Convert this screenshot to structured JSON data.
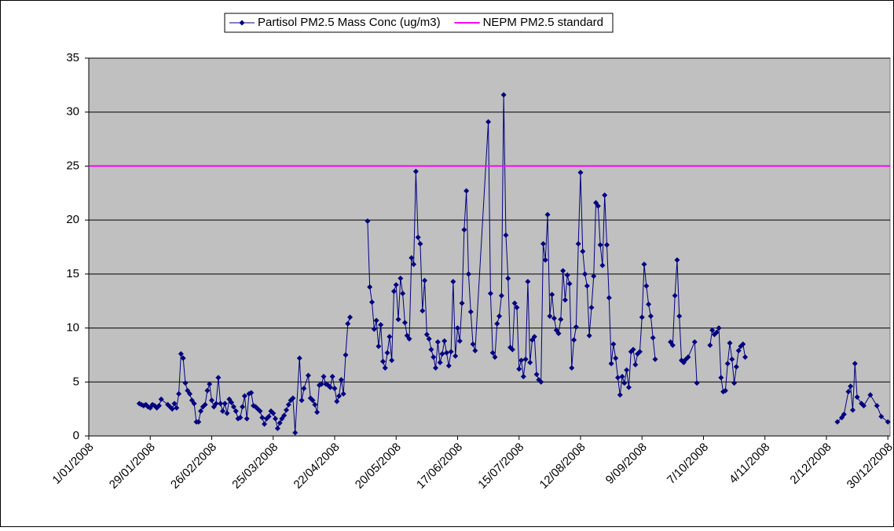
{
  "chart_data": {
    "type": "line",
    "xlim": [
      "2008-01-01",
      "2008-12-31"
    ],
    "xticks": [
      {
        "value": "2008-01-01",
        "label": "1/01/2008"
      },
      {
        "value": "2008-01-29",
        "label": "29/01/2008"
      },
      {
        "value": "2008-02-26",
        "label": "26/02/2008"
      },
      {
        "value": "2008-03-25",
        "label": "25/03/2008"
      },
      {
        "value": "2008-04-22",
        "label": "22/04/2008"
      },
      {
        "value": "2008-05-20",
        "label": "20/05/2008"
      },
      {
        "value": "2008-06-17",
        "label": "17/06/2008"
      },
      {
        "value": "2008-07-15",
        "label": "15/07/2008"
      },
      {
        "value": "2008-08-12",
        "label": "12/08/2008"
      },
      {
        "value": "2008-09-09",
        "label": "9/09/2008"
      },
      {
        "value": "2008-10-07",
        "label": "7/10/2008"
      },
      {
        "value": "2008-11-04",
        "label": "4/11/2008"
      },
      {
        "value": "2008-12-02",
        "label": "2/12/2008"
      },
      {
        "value": "2008-12-30",
        "label": "30/12/2008"
      }
    ],
    "ylim": [
      0,
      35
    ],
    "yticks": [
      0,
      5,
      10,
      15,
      20,
      25,
      30,
      35
    ],
    "grid": true,
    "series": [
      {
        "name": "Partisol PM2.5 Mass Conc (ug/m3)",
        "color": "#000080",
        "marker": "diamond",
        "x": [
          "2008-01-24",
          "2008-01-25",
          "2008-01-26",
          "2008-01-27",
          "2008-01-28",
          "2008-01-29",
          "2008-01-30",
          "2008-01-31",
          "2008-02-01",
          "2008-02-02",
          "2008-02-03",
          "2008-02-06",
          "2008-02-07",
          "2008-02-08",
          "2008-02-09",
          "2008-02-10",
          "2008-02-11",
          "2008-02-12",
          "2008-02-13",
          "2008-02-14",
          "2008-02-15",
          "2008-02-16",
          "2008-02-17",
          "2008-02-18",
          "2008-02-19",
          "2008-02-20",
          "2008-02-21",
          "2008-02-22",
          "2008-02-23",
          "2008-02-24",
          "2008-02-25",
          "2008-02-26",
          "2008-02-27",
          "2008-02-28",
          "2008-02-29",
          "2008-03-01",
          "2008-03-02",
          "2008-03-03",
          "2008-03-04",
          "2008-03-05",
          "2008-03-06",
          "2008-03-07",
          "2008-03-08",
          "2008-03-09",
          "2008-03-10",
          "2008-03-11",
          "2008-03-12",
          "2008-03-13",
          "2008-03-14",
          "2008-03-15",
          "2008-03-16",
          "2008-03-17",
          "2008-03-18",
          "2008-03-19",
          "2008-03-20",
          "2008-03-21",
          "2008-03-22",
          "2008-03-23",
          "2008-03-24",
          "2008-03-25",
          "2008-03-26",
          "2008-03-27",
          "2008-03-28",
          "2008-03-29",
          "2008-03-30",
          "2008-03-31",
          "2008-04-01",
          "2008-04-02",
          "2008-04-03",
          "2008-04-04",
          "2008-04-06",
          "2008-04-07",
          "2008-04-08",
          "2008-04-10",
          "2008-04-11",
          "2008-04-12",
          "2008-04-13",
          "2008-04-14",
          "2008-04-15",
          "2008-04-16",
          "2008-04-17",
          "2008-04-18",
          "2008-04-19",
          "2008-04-20",
          "2008-04-21",
          "2008-04-22",
          "2008-04-23",
          "2008-04-24",
          "2008-04-25",
          "2008-04-26",
          "2008-04-27",
          "2008-04-28",
          "2008-04-29",
          "2008-05-03",
          "2008-05-07",
          "2008-05-08",
          "2008-05-09",
          "2008-05-10",
          "2008-05-11",
          "2008-05-12",
          "2008-05-13",
          "2008-05-14",
          "2008-05-15",
          "2008-05-16",
          "2008-05-17",
          "2008-05-18",
          "2008-05-19",
          "2008-05-20",
          "2008-05-21",
          "2008-05-22",
          "2008-05-23",
          "2008-05-24",
          "2008-05-25",
          "2008-05-26",
          "2008-05-27",
          "2008-05-28",
          "2008-05-29",
          "2008-05-30",
          "2008-05-31",
          "2008-06-01",
          "2008-06-02",
          "2008-06-03",
          "2008-06-04",
          "2008-06-05",
          "2008-06-06",
          "2008-06-07",
          "2008-06-08",
          "2008-06-09",
          "2008-06-10",
          "2008-06-11",
          "2008-06-12",
          "2008-06-13",
          "2008-06-14",
          "2008-06-15",
          "2008-06-16",
          "2008-06-17",
          "2008-06-18",
          "2008-06-19",
          "2008-06-20",
          "2008-06-21",
          "2008-06-22",
          "2008-06-23",
          "2008-06-24",
          "2008-06-25",
          "2008-07-01",
          "2008-07-02",
          "2008-07-03",
          "2008-07-04",
          "2008-07-05",
          "2008-07-06",
          "2008-07-07",
          "2008-07-08",
          "2008-07-09",
          "2008-07-10",
          "2008-07-11",
          "2008-07-12",
          "2008-07-13",
          "2008-07-14",
          "2008-07-15",
          "2008-07-16",
          "2008-07-17",
          "2008-07-18",
          "2008-07-19",
          "2008-07-20",
          "2008-07-21",
          "2008-07-22",
          "2008-07-23",
          "2008-07-24",
          "2008-07-25",
          "2008-07-26",
          "2008-07-27",
          "2008-07-28",
          "2008-07-29",
          "2008-07-30",
          "2008-07-31",
          "2008-08-01",
          "2008-08-02",
          "2008-08-03",
          "2008-08-04",
          "2008-08-05",
          "2008-08-06",
          "2008-08-07",
          "2008-08-08",
          "2008-08-09",
          "2008-08-10",
          "2008-08-11",
          "2008-08-12",
          "2008-08-13",
          "2008-08-14",
          "2008-08-15",
          "2008-08-16",
          "2008-08-17",
          "2008-08-18",
          "2008-08-19",
          "2008-08-20",
          "2008-08-21",
          "2008-08-22",
          "2008-08-23",
          "2008-08-24",
          "2008-08-25",
          "2008-08-26",
          "2008-08-27",
          "2008-08-28",
          "2008-08-29",
          "2008-08-30",
          "2008-08-31",
          "2008-09-01",
          "2008-09-02",
          "2008-09-03",
          "2008-09-04",
          "2008-09-05",
          "2008-09-06",
          "2008-09-07",
          "2008-09-08",
          "2008-09-09",
          "2008-09-10",
          "2008-09-11",
          "2008-09-12",
          "2008-09-13",
          "2008-09-14",
          "2008-09-15",
          "2008-09-18",
          "2008-09-22",
          "2008-09-23",
          "2008-09-24",
          "2008-09-25",
          "2008-09-26",
          "2008-09-27",
          "2008-09-28",
          "2008-09-29",
          "2008-09-30",
          "2008-10-03",
          "2008-10-04",
          "2008-10-07",
          "2008-10-10",
          "2008-10-11",
          "2008-10-12",
          "2008-10-13",
          "2008-10-14",
          "2008-10-15",
          "2008-10-16",
          "2008-10-17",
          "2008-10-18",
          "2008-10-19",
          "2008-10-20",
          "2008-10-21",
          "2008-10-22",
          "2008-10-23",
          "2008-10-24",
          "2008-10-25",
          "2008-10-26",
          "2008-11-16",
          "2008-12-07",
          "2008-12-09",
          "2008-12-10",
          "2008-12-12",
          "2008-12-13",
          "2008-12-14",
          "2008-12-15",
          "2008-12-16",
          "2008-12-18",
          "2008-12-19",
          "2008-12-22",
          "2008-12-25",
          "2008-12-27",
          "2008-12-30"
        ],
        "values": [
          3.0,
          2.9,
          2.8,
          2.9,
          2.7,
          2.6,
          2.9,
          2.8,
          2.6,
          2.8,
          3.4,
          2.9,
          2.7,
          2.5,
          3.0,
          2.6,
          3.9,
          7.6,
          7.2,
          4.9,
          4.2,
          3.9,
          3.3,
          3.0,
          1.3,
          1.3,
          2.3,
          2.7,
          2.9,
          4.2,
          4.8,
          3.3,
          2.7,
          3.0,
          5.4,
          3.0,
          2.3,
          3.0,
          2.1,
          3.4,
          3.1,
          2.7,
          2.3,
          1.6,
          1.7,
          2.7,
          3.7,
          1.6,
          3.9,
          4.0,
          2.8,
          2.7,
          2.5,
          2.3,
          1.7,
          1.1,
          1.6,
          1.8,
          2.3,
          2.1,
          1.6,
          0.7,
          1.2,
          1.6,
          1.9,
          2.4,
          2.9,
          3.3,
          3.5,
          0.3,
          7.2,
          3.3,
          4.4,
          5.6,
          3.5,
          3.3,
          2.9,
          2.2,
          4.7,
          4.8,
          5.5,
          4.8,
          4.7,
          4.5,
          5.5,
          4.4,
          3.2,
          3.7,
          5.2,
          3.9,
          7.5,
          10.4,
          11.0,
          null,
          19.9,
          13.8,
          12.4,
          9.9,
          10.7,
          8.3,
          10.3,
          6.9,
          6.3,
          7.7,
          9.2,
          7.0,
          13.4,
          14.0,
          10.8,
          14.6,
          13.2,
          10.5,
          9.3,
          9.0,
          16.5,
          15.9,
          24.5,
          18.4,
          17.8,
          11.6,
          14.4,
          9.4,
          9.0,
          8.0,
          7.3,
          6.3,
          8.7,
          6.8,
          7.6,
          8.8,
          7.7,
          6.5,
          7.8,
          14.3,
          7.4,
          10.0,
          8.8,
          12.3,
          19.1,
          22.7,
          15.0,
          11.5,
          8.5,
          7.9,
          29.1,
          13.2,
          7.7,
          7.3,
          10.4,
          11.1,
          13.0,
          31.6,
          18.6,
          14.6,
          8.2,
          8.0,
          12.3,
          11.9,
          6.2,
          7.0,
          5.5,
          7.1,
          14.3,
          6.8,
          8.9,
          9.2,
          5.7,
          5.2,
          5.0,
          17.8,
          16.3,
          20.5,
          11.1,
          13.1,
          10.9,
          9.8,
          9.5,
          10.8,
          15.3,
          12.6,
          14.9,
          14.1,
          6.3,
          8.9,
          10.1,
          17.8,
          24.4,
          17.1,
          15.0,
          13.9,
          9.3,
          11.9,
          14.8,
          21.6,
          21.3,
          17.7,
          15.8,
          22.3,
          17.7,
          12.8,
          6.7,
          8.5,
          7.2,
          5.4,
          3.8,
          5.5,
          4.9,
          6.1,
          4.5,
          7.8,
          8.0,
          6.6,
          7.6,
          7.8,
          11.0,
          15.9,
          13.9,
          12.2,
          11.1,
          9.1,
          7.1,
          null,
          8.7,
          8.4,
          13.0,
          16.3,
          11.1,
          7.0,
          6.8,
          7.1,
          7.3,
          8.7,
          4.9,
          null,
          8.4,
          9.8,
          9.4,
          9.6,
          10.0,
          5.4,
          4.1,
          4.2,
          6.7,
          8.6,
          7.1,
          4.9,
          6.4,
          7.9,
          8.3,
          8.5,
          7.3,
          null,
          1.3,
          1.7,
          2.0,
          4.1,
          4.6,
          2.4,
          6.7,
          3.6,
          3.0,
          2.8,
          3.8,
          2.8,
          1.8,
          1.3
        ]
      },
      {
        "name": "NEPM PM2.5 standard",
        "color": "#ff00ff",
        "marker": "none",
        "x": [
          "2008-01-01",
          "2008-12-31"
        ],
        "values": [
          25,
          25
        ]
      }
    ],
    "legend": "top"
  }
}
